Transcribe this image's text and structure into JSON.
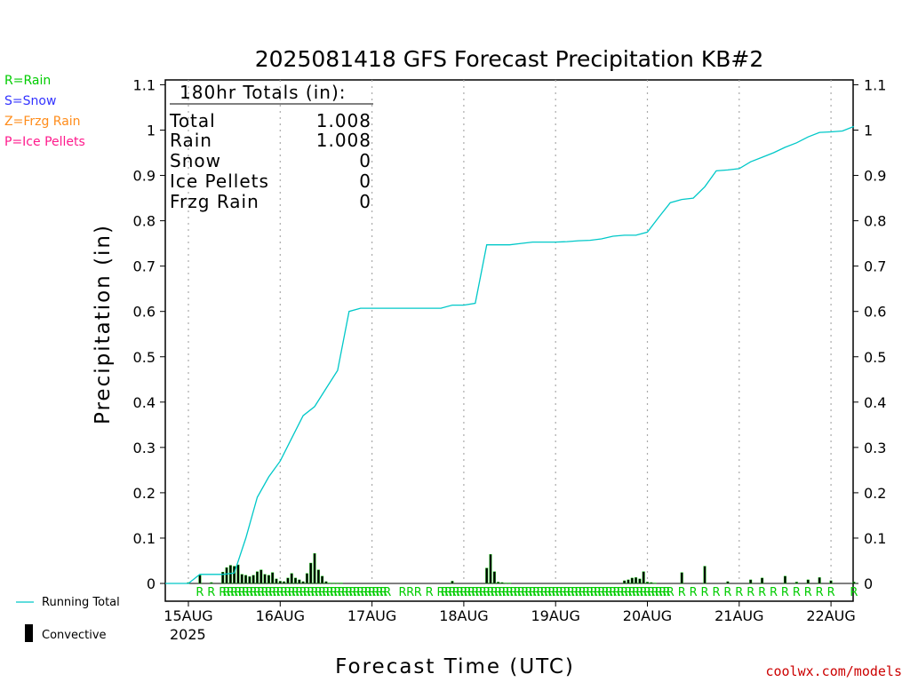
{
  "chart_data": {
    "type": "line",
    "title": "2025081418 GFS Forecast Precipitation KB#2",
    "xlabel": "Forecast Time (UTC)",
    "ylabel": "Precipitation (in)",
    "ylim": [
      0,
      1.1
    ],
    "y_ticks": [
      "0",
      "0.1",
      "0.2",
      "0.3",
      "0.4",
      "0.5",
      "0.6",
      "0.7",
      "0.8",
      "0.9",
      "1",
      "1.1"
    ],
    "x_tick_labels": [
      "15AUG",
      "16AUG",
      "17AUG",
      "18AUG",
      "19AUG",
      "20AUG",
      "21AUG",
      "22AUG"
    ],
    "x_year_label": "2025",
    "grid": "vertical dotted at day boundaries",
    "precip_type_legend": [
      {
        "label": "R=Rain",
        "color": "#00cc00"
      },
      {
        "label": "S=Snow",
        "color": "#3333ff"
      },
      {
        "label": "Z=Frzg Rain",
        "color": "#ff8c1a"
      },
      {
        "label": "P=Ice Pellets",
        "color": "#ff1a8c"
      }
    ],
    "totals_box": {
      "header": "180hr Totals (in):",
      "rows": [
        {
          "label": "Total",
          "value": "1.008"
        },
        {
          "label": "Rain",
          "value": "1.008"
        },
        {
          "label": "Snow",
          "value": "0"
        },
        {
          "label": "Ice Pellets",
          "value": "0"
        },
        {
          "label": "Frzg Rain",
          "value": "0"
        }
      ]
    },
    "series_legend": [
      {
        "name": "Running Total",
        "color": "#00c8c8"
      },
      {
        "name": "Convective",
        "color": "#000000"
      }
    ],
    "x_units": "forecast hour (0 = 2025-08-14 18Z)",
    "running_total": {
      "name": "Running Total",
      "x": [
        0,
        6,
        9,
        12,
        15,
        18,
        21,
        24,
        27,
        30,
        33,
        36,
        39,
        42,
        45,
        48,
        51,
        54,
        57,
        60,
        63,
        66,
        69,
        72,
        75,
        78,
        81,
        84,
        87,
        90,
        93,
        96,
        99,
        102,
        105,
        108,
        111,
        114,
        117,
        120,
        123,
        126,
        129,
        132,
        135,
        138,
        141,
        144,
        147,
        150,
        153,
        156,
        159,
        162,
        165,
        168,
        171,
        174,
        177,
        180
      ],
      "values": [
        0,
        0,
        0.02,
        0.02,
        0.02,
        0.023,
        0.1,
        0.19,
        0.235,
        0.27,
        0.32,
        0.37,
        0.39,
        0.43,
        0.47,
        0.6,
        0.607,
        0.607,
        0.607,
        0.607,
        0.607,
        0.607,
        0.607,
        0.607,
        0.614,
        0.614,
        0.618,
        0.747,
        0.747,
        0.747,
        0.75,
        0.753,
        0.753,
        0.753,
        0.754,
        0.756,
        0.757,
        0.76,
        0.766,
        0.768,
        0.768,
        0.775,
        0.808,
        0.84,
        0.847,
        0.85,
        0.875,
        0.91,
        0.912,
        0.915,
        0.93,
        0.94,
        0.95,
        0.962,
        0.972,
        0.985,
        0.995,
        0.996,
        0.998,
        1.008
      ]
    },
    "convective_bars": {
      "name": "Convective",
      "x": [
        6,
        9,
        12,
        15,
        16,
        17,
        18,
        19,
        20,
        21,
        22,
        23,
        24,
        25,
        26,
        27,
        28,
        29,
        30,
        31,
        32,
        33,
        34,
        35,
        36,
        37,
        38,
        39,
        40,
        41,
        42,
        43,
        44,
        45,
        46,
        75,
        84,
        85,
        86,
        87,
        88,
        89,
        90,
        120,
        121,
        122,
        123,
        124,
        125,
        126,
        127,
        128,
        135,
        141,
        147,
        153,
        156,
        162,
        165,
        168,
        171,
        174,
        180
      ],
      "values": [
        0.002,
        0.018,
        0.002,
        0.025,
        0.035,
        0.04,
        0.038,
        0.041,
        0.02,
        0.018,
        0.015,
        0.018,
        0.026,
        0.03,
        0.02,
        0.018,
        0.024,
        0.01,
        0.005,
        0.004,
        0.012,
        0.022,
        0.012,
        0.008,
        0.004,
        0.022,
        0.045,
        0.066,
        0.03,
        0.016,
        0.004,
        0.001,
        0.001,
        0.001,
        0.001,
        0.005,
        0.034,
        0.064,
        0.026,
        0.003,
        0.002,
        0.001,
        0.001,
        0.006,
        0.008,
        0.012,
        0.013,
        0.01,
        0.026,
        0.003,
        0.002,
        0.001,
        0.024,
        0.038,
        0.004,
        0.008,
        0.012,
        0.016,
        0.003,
        0.008,
        0.013,
        0.006,
        0.003
      ]
    },
    "rain_markers": {
      "label": "R",
      "x": [
        9,
        12,
        15,
        16,
        17,
        18,
        19,
        20,
        21,
        22,
        23,
        24,
        25,
        26,
        27,
        28,
        29,
        30,
        31,
        32,
        33,
        34,
        35,
        36,
        37,
        38,
        39,
        40,
        41,
        42,
        43,
        44,
        45,
        46,
        47,
        48,
        49,
        50,
        51,
        52,
        53,
        54,
        55,
        56,
        57,
        58,
        62,
        64,
        66,
        69,
        72,
        73,
        74,
        75,
        76,
        77,
        78,
        79,
        80,
        81,
        82,
        83,
        84,
        85,
        86,
        87,
        88,
        89,
        90,
        91,
        92,
        93,
        94,
        95,
        96,
        97,
        98,
        99,
        100,
        101,
        102,
        103,
        104,
        105,
        106,
        107,
        108,
        109,
        110,
        111,
        112,
        113,
        114,
        115,
        116,
        117,
        118,
        119,
        120,
        121,
        122,
        123,
        124,
        125,
        126,
        127,
        128,
        129,
        130,
        131,
        132,
        135,
        138,
        141,
        144,
        147,
        150,
        153,
        156,
        159,
        162,
        165,
        168,
        171,
        174,
        180
      ]
    }
  },
  "credit": "coolwx.com/models"
}
